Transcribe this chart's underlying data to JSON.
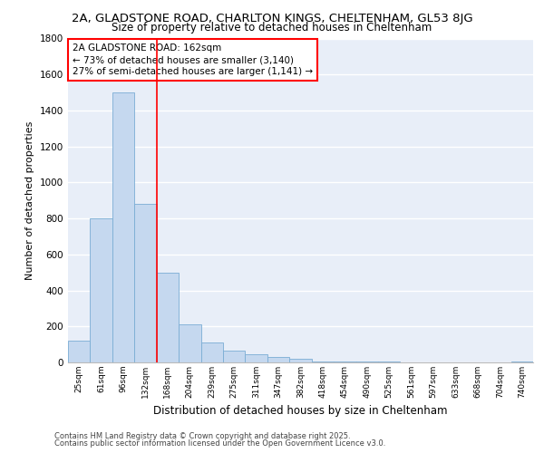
{
  "title1": "2A, GLADSTONE ROAD, CHARLTON KINGS, CHELTENHAM, GL53 8JG",
  "title2": "Size of property relative to detached houses in Cheltenham",
  "xlabel": "Distribution of detached houses by size in Cheltenham",
  "ylabel": "Number of detached properties",
  "categories": [
    "25sqm",
    "61sqm",
    "96sqm",
    "132sqm",
    "168sqm",
    "204sqm",
    "239sqm",
    "275sqm",
    "311sqm",
    "347sqm",
    "382sqm",
    "418sqm",
    "454sqm",
    "490sqm",
    "525sqm",
    "561sqm",
    "597sqm",
    "633sqm",
    "668sqm",
    "704sqm",
    "740sqm"
  ],
  "values": [
    120,
    800,
    1500,
    880,
    500,
    210,
    110,
    65,
    45,
    30,
    20,
    5,
    4,
    3,
    3,
    2,
    2,
    2,
    1,
    1,
    3
  ],
  "bar_color": "#c5d8ef",
  "bar_edge_color": "#7aadd4",
  "red_line_x": 4,
  "annotation_title": "2A GLADSTONE ROAD: 162sqm",
  "annotation_line2": "← 73% of detached houses are smaller (3,140)",
  "annotation_line3": "27% of semi-detached houses are larger (1,141) →",
  "ylim": [
    0,
    1800
  ],
  "yticks": [
    0,
    200,
    400,
    600,
    800,
    1000,
    1200,
    1400,
    1600,
    1800
  ],
  "bg_color": "#e8eef8",
  "grid_color": "#ffffff",
  "footer1": "Contains HM Land Registry data © Crown copyright and database right 2025.",
  "footer2": "Contains public sector information licensed under the Open Government Licence v3.0.",
  "title1_fontsize": 9.5,
  "title2_fontsize": 8.5,
  "xlabel_fontsize": 8.5,
  "ylabel_fontsize": 8,
  "annotation_fontsize": 7.5,
  "footer_fontsize": 6
}
